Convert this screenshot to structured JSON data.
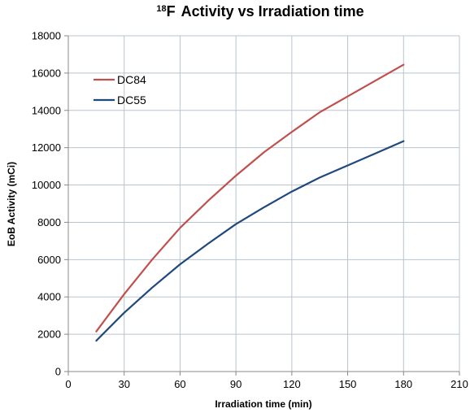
{
  "chart_data": {
    "type": "line",
    "title": {
      "isotope_mass": "18",
      "isotope_symbol": "F",
      "rest": "Activity vs Irradiation time"
    },
    "xlabel": "Irradiation time (min)",
    "ylabel": "EoB Activity (mCi)",
    "xlim": [
      0,
      210
    ],
    "ylim": [
      0,
      18000
    ],
    "xticks": [
      0,
      30,
      60,
      90,
      120,
      150,
      180,
      210
    ],
    "yticks": [
      0,
      2000,
      4000,
      6000,
      8000,
      10000,
      12000,
      14000,
      16000,
      18000
    ],
    "grid": true,
    "legend_position": "top-left",
    "series": [
      {
        "name": "DC84",
        "color": "#c0504d",
        "x": [
          15,
          30,
          45,
          60,
          75,
          90,
          105,
          120,
          135,
          150,
          165,
          180
        ],
        "y": [
          2150,
          4150,
          6000,
          7700,
          9150,
          10500,
          11750,
          12850,
          13900,
          14750,
          15600,
          16450
        ]
      },
      {
        "name": "DC55",
        "color": "#1f497d",
        "x": [
          15,
          30,
          45,
          60,
          75,
          90,
          105,
          120,
          135,
          150,
          165,
          180
        ],
        "y": [
          1650,
          3150,
          4500,
          5750,
          6850,
          7900,
          8800,
          9650,
          10400,
          11050,
          11700,
          12350
        ]
      }
    ]
  }
}
